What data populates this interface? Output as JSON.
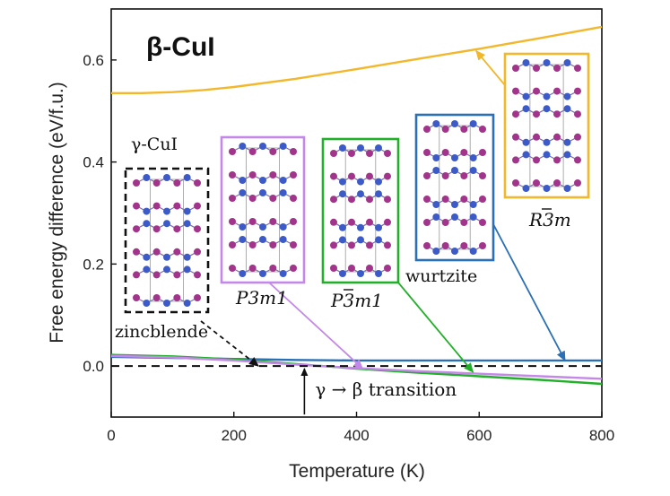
{
  "chart_data": {
    "type": "line",
    "title": "β-CuI",
    "xlabel": "Temperature (K)",
    "ylabel": "Free energy difference (eV/f.u.)",
    "xlim": [
      0,
      800
    ],
    "ylim": [
      -0.1,
      0.7
    ],
    "xticks": [
      "0",
      "200",
      "400",
      "600",
      "800"
    ],
    "yticks": [
      "0.0",
      "0.2",
      "0.4",
      "0.6"
    ],
    "grid": false,
    "series": [
      {
        "name": "R3̄m",
        "color": "#f2b72b",
        "x": [
          0,
          50,
          100,
          150,
          200,
          300,
          400,
          500,
          600,
          700,
          800
        ],
        "y": [
          0.535,
          0.535,
          0.537,
          0.541,
          0.547,
          0.563,
          0.582,
          0.602,
          0.622,
          0.643,
          0.665
        ]
      },
      {
        "name": "wurtzite",
        "color": "#2b6fb5",
        "x": [
          0,
          100,
          200,
          300,
          400,
          500,
          600,
          700,
          800
        ],
        "y": [
          0.018,
          0.016,
          0.014,
          0.012,
          0.011,
          0.011,
          0.011,
          0.011,
          0.011
        ]
      },
      {
        "name": "P3̄m1",
        "color": "#22b02a",
        "x": [
          0,
          100,
          200,
          300,
          400,
          500,
          600,
          700,
          800
        ],
        "y": [
          0.022,
          0.019,
          0.013,
          0.004,
          -0.005,
          -0.013,
          -0.02,
          -0.027,
          -0.035
        ]
      },
      {
        "name": "P3m1",
        "color": "#c488e8",
        "x": [
          0,
          100,
          200,
          300,
          400,
          500,
          600,
          700,
          800
        ],
        "y": [
          0.02,
          0.017,
          0.011,
          0.003,
          -0.004,
          -0.01,
          -0.015,
          -0.02,
          -0.025
        ]
      },
      {
        "name": "zincblende",
        "color": "#111111",
        "dashed": true,
        "x": [
          0,
          800
        ],
        "y": [
          0,
          0
        ]
      }
    ],
    "annotations": {
      "gamma_label": "γ-CuI",
      "zincblende": "zincblende",
      "p3m1": "P3m1",
      "p3bar_prefix": "P",
      "p3bar_digit": "3",
      "p3bar_suffix": "m1",
      "wurtzite": "wurtzite",
      "r3bar_prefix": "R",
      "r3bar_digit": "3",
      "r3bar_suffix": "m",
      "transition": "γ → β transition",
      "transition_temperature": 315
    },
    "arrow_targets": [
      {
        "to": "zincblende",
        "x": 240,
        "y": 0.0
      },
      {
        "to": "P3m1",
        "x": 410,
        "y": -0.005
      },
      {
        "to": "P3̄m1",
        "x": 590,
        "y": -0.012
      },
      {
        "to": "wurtzite",
        "x": 740,
        "y": 0.011
      },
      {
        "to": "R3̄m",
        "x": 595,
        "y": 0.618
      }
    ]
  },
  "colors": {
    "zincblende": "#111111",
    "p3m1": "#c488e8",
    "p3bar": "#22b02a",
    "wurtzite": "#2b6fb5",
    "r3bar": "#f2b72b",
    "atom_iodine": "#a2348c",
    "atom_copper": "#3c5bc8"
  }
}
